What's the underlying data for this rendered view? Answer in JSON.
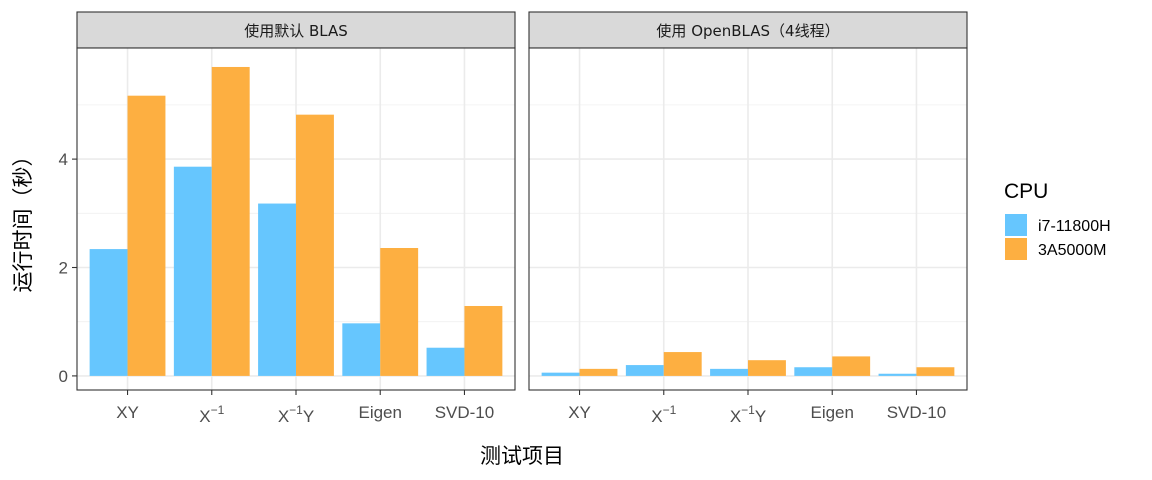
{
  "chart_data": {
    "type": "bar",
    "xlabel": "测试项目",
    "ylabel": "运行时间（秒）",
    "yticks": [
      0,
      2,
      4
    ],
    "ylim": [
      -0.26,
      6.05
    ],
    "categories": [
      "XY",
      "X",
      "X",
      "Eigen",
      "SVD-10"
    ],
    "category_superscripts": [
      "",
      "−1",
      "−1",
      "",
      ""
    ],
    "category_suffixes": [
      "",
      "",
      "Y",
      "",
      ""
    ],
    "legend": {
      "title": "CPU",
      "position": "right"
    },
    "colors": {
      "i7-11800H": "#66c6fe",
      "3A5000M": "#fdaf41"
    },
    "grid": true,
    "facets": [
      {
        "label": "使用默认 BLAS",
        "series": [
          {
            "name": "i7-11800H",
            "values": [
              2.34,
              3.86,
              3.18,
              0.97,
              0.52
            ]
          },
          {
            "name": "3A5000M",
            "values": [
              5.17,
              5.7,
              4.82,
              2.36,
              1.29
            ]
          }
        ]
      },
      {
        "label": "使用 OpenBLAS（4线程）",
        "series": [
          {
            "name": "i7-11800H",
            "values": [
              0.06,
              0.2,
              0.13,
              0.16,
              0.04
            ]
          },
          {
            "name": "3A5000M",
            "values": [
              0.13,
              0.44,
              0.29,
              0.36,
              0.16
            ]
          }
        ]
      }
    ]
  }
}
